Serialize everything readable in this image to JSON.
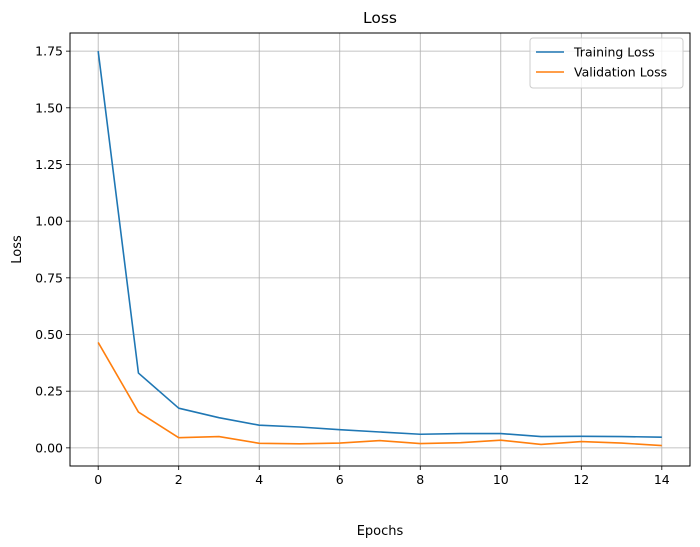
{
  "chart_data": {
    "type": "line",
    "title": "Loss",
    "xlabel": "Epochs",
    "ylabel": "Loss",
    "xlim": [
      -0.7,
      14.7
    ],
    "ylim": [
      -0.08,
      1.83
    ],
    "xticks": [
      0,
      2,
      4,
      6,
      8,
      10,
      12,
      14
    ],
    "xtick_labels": [
      "0",
      "2",
      "4",
      "6",
      "8",
      "10",
      "12",
      "14"
    ],
    "yticks": [
      0.0,
      0.25,
      0.5,
      0.75,
      1.0,
      1.25,
      1.5,
      1.75
    ],
    "ytick_labels": [
      "0.00",
      "0.25",
      "0.50",
      "0.75",
      "1.00",
      "1.25",
      "1.50",
      "1.75"
    ],
    "grid": true,
    "legend_position": "top-right",
    "x": [
      0,
      1,
      2,
      3,
      4,
      5,
      6,
      7,
      8,
      9,
      10,
      11,
      12,
      13,
      14
    ],
    "series": [
      {
        "name": "Training Loss",
        "color": "#1f77b4",
        "values": [
          1.75,
          0.33,
          0.175,
          0.133,
          0.1,
          0.092,
          0.08,
          0.07,
          0.06,
          0.063,
          0.063,
          0.05,
          0.051,
          0.05,
          0.047
        ]
      },
      {
        "name": "Validation Loss",
        "color": "#ff7f0e",
        "values": [
          0.465,
          0.158,
          0.045,
          0.05,
          0.02,
          0.018,
          0.021,
          0.032,
          0.019,
          0.023,
          0.034,
          0.015,
          0.028,
          0.021,
          0.01
        ]
      }
    ]
  }
}
